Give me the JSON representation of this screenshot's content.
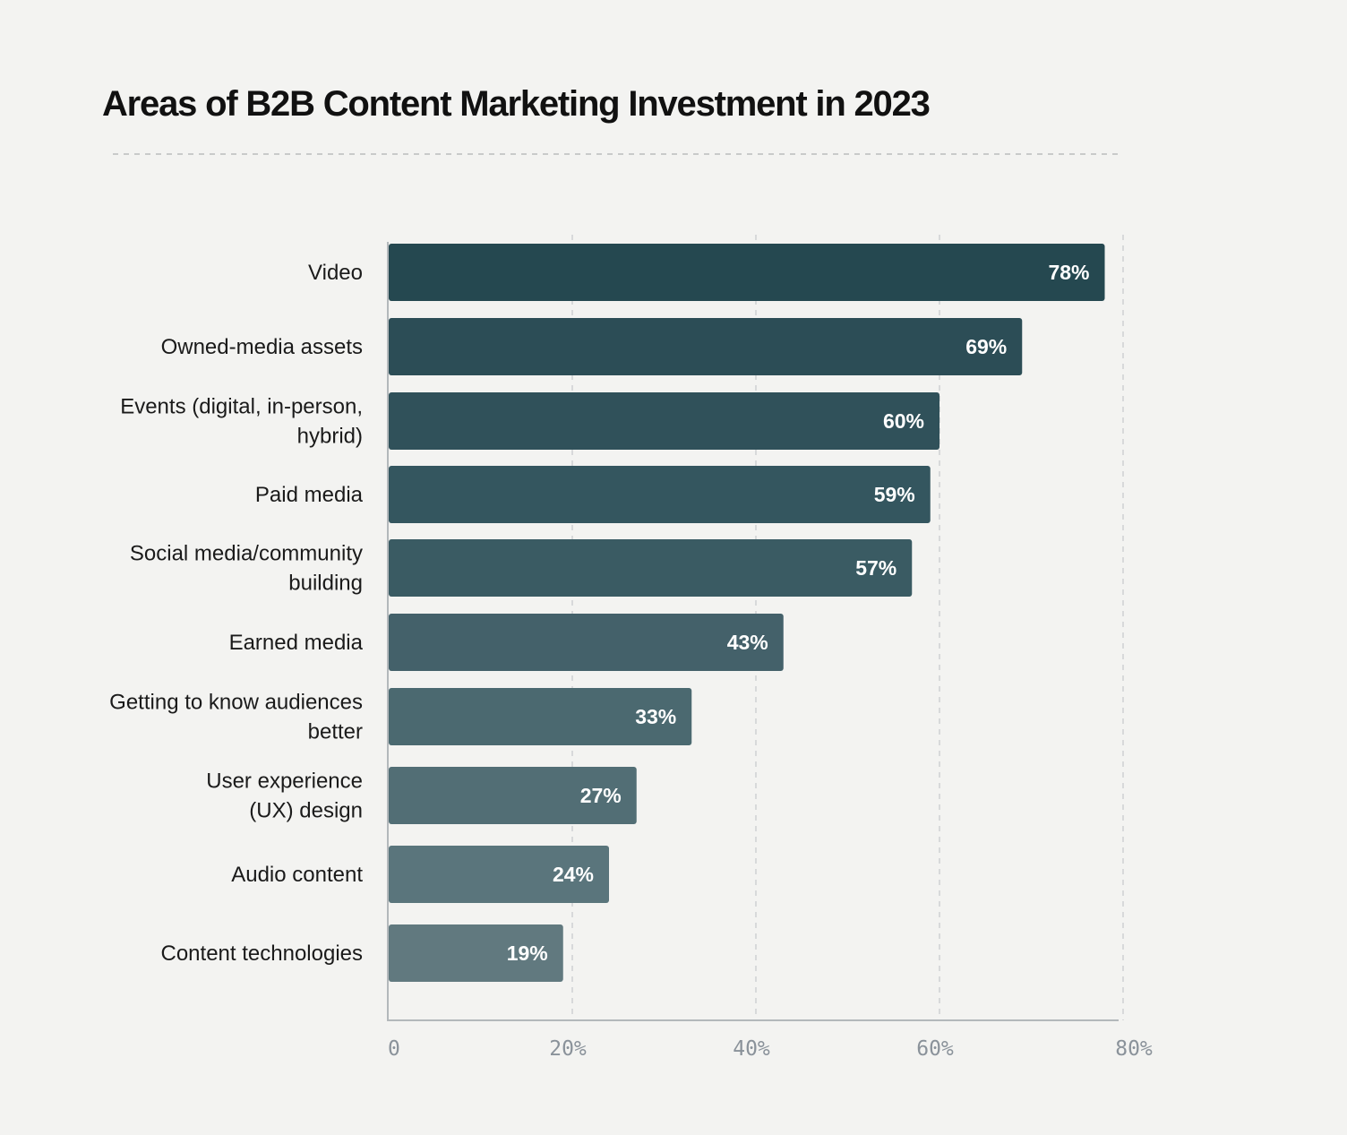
{
  "chart_data": {
    "type": "bar",
    "orientation": "horizontal",
    "title": "Areas of B2B Content Marketing Investment in 2023",
    "categories": [
      [
        "Video"
      ],
      [
        "Owned-media assets"
      ],
      [
        "Events (digital, in-person,",
        "hybrid)"
      ],
      [
        "Paid media"
      ],
      [
        "Social media/community",
        "building"
      ],
      [
        "Earned media"
      ],
      [
        "Getting to know audiences",
        "better"
      ],
      [
        "User experience",
        "(UX) design"
      ],
      [
        "Audio content"
      ],
      [
        "Content technologies"
      ]
    ],
    "values": [
      78,
      69,
      60,
      59,
      57,
      43,
      33,
      27,
      24,
      19
    ],
    "value_labels": [
      "78%",
      "69%",
      "60%",
      "59%",
      "57%",
      "43%",
      "33%",
      "27%",
      "24%",
      "19%"
    ],
    "xlim": [
      0,
      80
    ],
    "xticks": [
      0,
      20,
      40,
      60,
      80
    ],
    "xtick_labels": [
      "0",
      "20%",
      "40%",
      "60%",
      "80%"
    ],
    "grid": "vertical dashed",
    "bar_colors": [
      "#254850",
      "#2c4d56",
      "#30515a",
      "#34565f",
      "#3a5b63",
      "#44616a",
      "#4b6970",
      "#526e75",
      "#5a757c",
      "#61797f"
    ]
  }
}
